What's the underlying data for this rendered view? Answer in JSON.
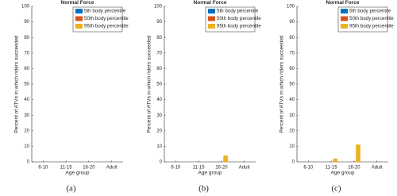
{
  "chart_data": [
    {
      "type": "bar",
      "title": "Normal Force",
      "xlabel": "Age group",
      "ylabel": "Percent of ATVs in which riders succeeded",
      "caption": "(a)",
      "categories": [
        "6-10",
        "11-15",
        "16-20",
        "Adult"
      ],
      "series": [
        {
          "name": "5th body percentile",
          "color": "#0072BD",
          "values": [
            0,
            0,
            0,
            0
          ]
        },
        {
          "name": "50th body percentile",
          "color": "#D95319",
          "values": [
            0,
            0,
            0,
            0
          ]
        },
        {
          "name": "95th body percentile",
          "color": "#EDB120",
          "values": [
            0,
            0,
            0,
            0
          ]
        }
      ],
      "ylim": [
        0,
        100
      ],
      "yticks": [
        0,
        10,
        20,
        30,
        40,
        50,
        60,
        70,
        80,
        90,
        100
      ],
      "legend": "upper right"
    },
    {
      "type": "bar",
      "title": "Normal Force",
      "xlabel": "Age group",
      "ylabel": "Percent of ATVs in which riders succeeded",
      "caption": "(b)",
      "categories": [
        "6-10",
        "11-15",
        "16-20",
        "Adult"
      ],
      "series": [
        {
          "name": "5th body percentile",
          "color": "#0072BD",
          "values": [
            0,
            0,
            0,
            0
          ]
        },
        {
          "name": "50th body percentile",
          "color": "#D95319",
          "values": [
            0,
            0,
            0,
            0
          ]
        },
        {
          "name": "95th body percentile",
          "color": "#EDB120",
          "values": [
            0,
            0,
            4,
            0
          ]
        }
      ],
      "ylim": [
        0,
        100
      ],
      "yticks": [
        0,
        10,
        20,
        30,
        40,
        50,
        60,
        70,
        80,
        90,
        100
      ],
      "legend": "upper right"
    },
    {
      "type": "bar",
      "title": "Normal Force",
      "xlabel": "Age group",
      "ylabel": "Percent of ATVs in which riders succeeded",
      "caption": "(c)",
      "categories": [
        "6-10",
        "11-15",
        "16-20",
        "Adult"
      ],
      "series": [
        {
          "name": "5th body percentile",
          "color": "#0072BD",
          "values": [
            0,
            0,
            0,
            0
          ]
        },
        {
          "name": "50th body percentile",
          "color": "#D95319",
          "values": [
            0,
            0,
            0,
            0
          ]
        },
        {
          "name": "95th body percentile",
          "color": "#EDB120",
          "values": [
            0,
            2,
            11,
            0
          ]
        }
      ],
      "ylim": [
        0,
        100
      ],
      "yticks": [
        0,
        10,
        20,
        30,
        40,
        50,
        60,
        70,
        80,
        90,
        100
      ],
      "legend": "upper right"
    }
  ]
}
